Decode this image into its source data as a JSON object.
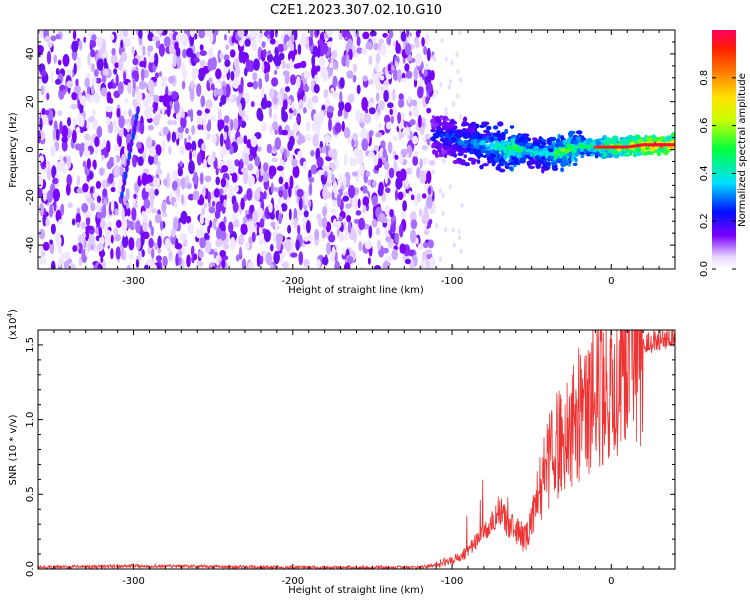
{
  "title": "C2E1.2023.307.02.10.G10",
  "colors": {
    "snr_line": "#ee3333",
    "axis": "#000000",
    "background": "#ffffff"
  },
  "chart_data": [
    {
      "type": "heatmap",
      "xlabel": "Height of straight line (km)",
      "ylabel": "Frequency (Hz)",
      "xlim": [
        -360,
        40
      ],
      "ylim": [
        -50,
        50
      ],
      "xticks": [
        -300,
        -200,
        -100,
        0
      ],
      "yticks": [
        -40,
        -20,
        0,
        20,
        40
      ],
      "xtick_labels": [
        "-300",
        "-200",
        "-100",
        "0"
      ],
      "ytick_labels": [
        "-40",
        "-20",
        "0",
        "20",
        "40"
      ],
      "noise_region_x": [
        -360,
        -112
      ],
      "ridge": {
        "x": [
          -112,
          -100,
          -90,
          -80,
          -70,
          -60,
          -50,
          -40,
          -30,
          -20,
          -10,
          0,
          10,
          20,
          30,
          40
        ],
        "frequency": [
          6,
          5,
          3,
          2,
          1,
          0,
          -1,
          -2,
          -1,
          1,
          1,
          1,
          1,
          2,
          2,
          2
        ],
        "amplitude": [
          0.25,
          0.3,
          0.35,
          0.4,
          0.45,
          0.55,
          0.4,
          0.45,
          0.6,
          0.55,
          0.6,
          0.8,
          0.8,
          0.95,
          0.95,
          0.95
        ]
      },
      "colorbar": {
        "label": "Normalized spectral amplitude",
        "ticks": [
          0.0,
          0.2,
          0.4,
          0.6,
          0.8
        ],
        "tick_labels": [
          "0.0",
          "0.2",
          "0.4",
          "0.6",
          "0.8"
        ],
        "range": [
          0,
          1
        ]
      }
    },
    {
      "type": "line",
      "xlabel": "Height of straight line (km)",
      "ylabel": "SNR (10 * v/v)",
      "scale_label_base": "(x10",
      "scale_label_exp": "4",
      "scale_label_end": ")",
      "xlim": [
        -360,
        40
      ],
      "ylim": [
        0,
        1.6
      ],
      "xticks": [
        -300,
        -200,
        -100,
        0
      ],
      "yticks": [
        0.0,
        0.5,
        1.0,
        1.5
      ],
      "xtick_labels": [
        "-300",
        "-200",
        "-100",
        "0"
      ],
      "ytick_labels": [
        "0.0",
        "0.5",
        "1.0",
        "1.5"
      ],
      "series": [
        {
          "name": "SNR",
          "x": [
            -360,
            -300,
            -200,
            -120,
            -110,
            -100,
            -90,
            -80,
            -75,
            -70,
            -65,
            -60,
            -55,
            -50,
            -45,
            -40,
            -35,
            -30,
            -25,
            -20,
            -15,
            -10,
            -5,
            0,
            5,
            10,
            15,
            20,
            25,
            30,
            35,
            40
          ],
          "y": [
            0.01,
            0.02,
            0.01,
            0.01,
            0.03,
            0.06,
            0.12,
            0.25,
            0.3,
            0.42,
            0.28,
            0.3,
            0.2,
            0.3,
            0.55,
            0.7,
            0.8,
            0.9,
            0.95,
            1.0,
            1.05,
            1.15,
            1.2,
            1.3,
            1.35,
            1.45,
            1.48,
            1.5,
            1.52,
            1.54,
            1.55,
            1.57
          ]
        }
      ]
    }
  ]
}
